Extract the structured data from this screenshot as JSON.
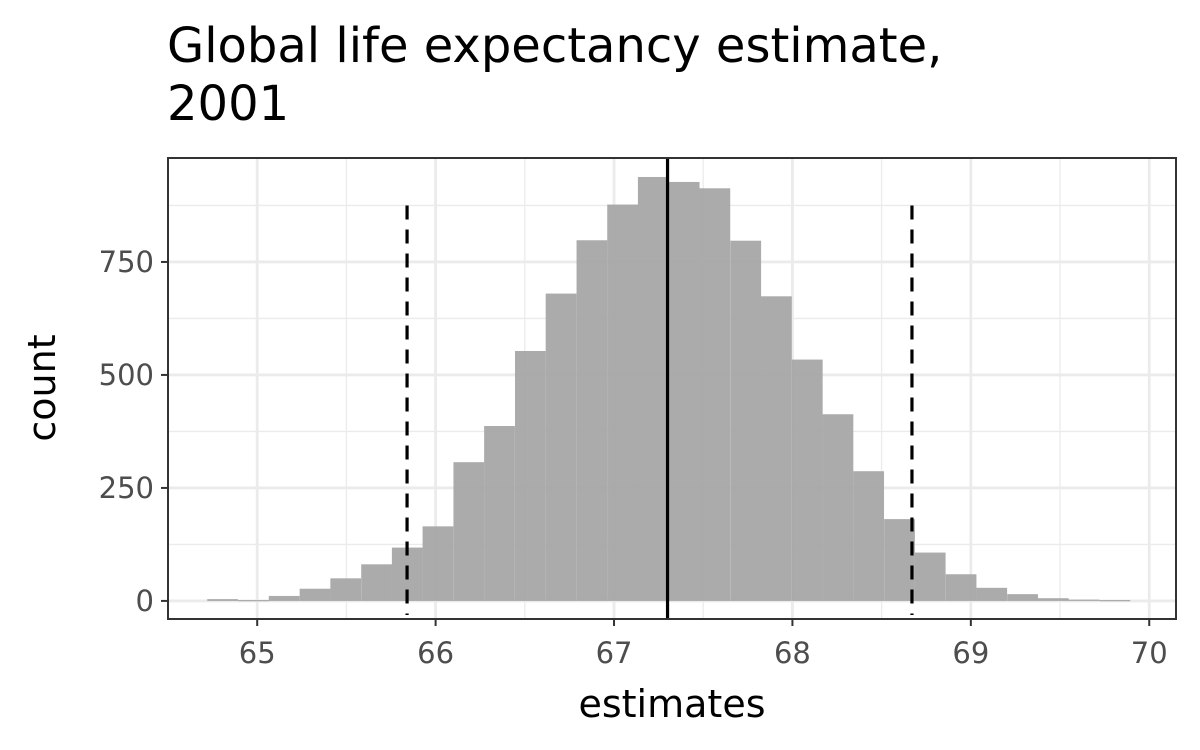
{
  "chart_data": {
    "type": "histogram",
    "title_lines": [
      "Global life expectancy estimate,",
      "2001"
    ],
    "xlabel": "estimates",
    "ylabel": "count",
    "xlim": [
      64.5,
      70.15
    ],
    "ylim": [
      -40,
      980
    ],
    "x_ticks": [
      65,
      66,
      67,
      68,
      69,
      70
    ],
    "y_ticks": [
      0,
      250,
      500,
      750
    ],
    "y_minor_ticks": [
      125,
      375,
      625,
      875
    ],
    "x_minor_ticks": [
      65.5,
      66.5,
      67.5,
      68.5,
      69.5
    ],
    "grid": true,
    "bin_width": 0.1724,
    "bins": [
      {
        "x0": 64.72,
        "count": 4
      },
      {
        "x0": 64.893,
        "count": 2
      },
      {
        "x0": 65.065,
        "count": 11
      },
      {
        "x0": 65.238,
        "count": 27
      },
      {
        "x0": 65.41,
        "count": 50
      },
      {
        "x0": 65.583,
        "count": 81
      },
      {
        "x0": 65.755,
        "count": 118
      },
      {
        "x0": 65.927,
        "count": 165
      },
      {
        "x0": 66.1,
        "count": 307
      },
      {
        "x0": 66.272,
        "count": 387
      },
      {
        "x0": 66.445,
        "count": 553
      },
      {
        "x0": 66.617,
        "count": 680
      },
      {
        "x0": 66.79,
        "count": 798
      },
      {
        "x0": 66.962,
        "count": 877
      },
      {
        "x0": 67.134,
        "count": 938
      },
      {
        "x0": 67.307,
        "count": 927
      },
      {
        "x0": 67.479,
        "count": 913
      },
      {
        "x0": 67.652,
        "count": 797
      },
      {
        "x0": 67.824,
        "count": 674
      },
      {
        "x0": 67.997,
        "count": 534
      },
      {
        "x0": 68.169,
        "count": 413
      },
      {
        "x0": 68.341,
        "count": 287
      },
      {
        "x0": 68.514,
        "count": 181
      },
      {
        "x0": 68.686,
        "count": 107
      },
      {
        "x0": 68.859,
        "count": 59
      },
      {
        "x0": 69.031,
        "count": 29
      },
      {
        "x0": 69.204,
        "count": 15
      },
      {
        "x0": 69.376,
        "count": 6
      },
      {
        "x0": 69.548,
        "count": 3
      },
      {
        "x0": 69.721,
        "count": 2
      }
    ],
    "mean_line": 67.3,
    "ci_lines": [
      65.84,
      68.67
    ],
    "bar_color": "#a6a6a6",
    "line_color": "#000000",
    "grid_color": "#ebebeb"
  }
}
